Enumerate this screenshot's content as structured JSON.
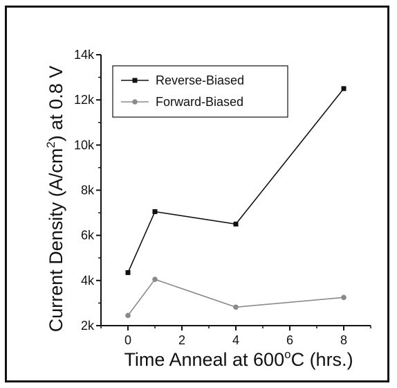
{
  "chart_data": {
    "type": "line",
    "title": "",
    "xlabel": "Time Anneal at 600°C (hrs.)",
    "xlabel_parts": {
      "before": "Time Anneal at 600",
      "degree": "o",
      "after": "C (hrs.)"
    },
    "ylabel": "Current Density (A/cm2) at 0.8 V",
    "ylabel_parts": {
      "before": "Current Density (A/cm",
      "sup": "2",
      "after": ") at 0.8 V"
    },
    "xlim": [
      -1,
      9
    ],
    "ylim": [
      2000,
      14000
    ],
    "xticks": [
      0,
      2,
      4,
      6,
      8
    ],
    "xtick_labels": [
      "0",
      "2",
      "4",
      "6",
      "8"
    ],
    "yticks": [
      2000,
      4000,
      6000,
      8000,
      10000,
      12000,
      14000
    ],
    "ytick_labels": [
      "2k",
      "4k",
      "6k",
      "8k",
      "10k",
      "12k",
      "14k"
    ],
    "grid": false,
    "legend_position": "top-left",
    "series": [
      {
        "name": "Reverse-Biased",
        "color": "#111111",
        "marker": "square",
        "x": [
          0,
          1,
          4,
          8
        ],
        "y": [
          4350,
          7050,
          6500,
          12500
        ]
      },
      {
        "name": "Forward-Biased",
        "color": "#8a8a8a",
        "marker": "circle",
        "x": [
          0,
          1,
          4,
          8
        ],
        "y": [
          2450,
          4050,
          2820,
          3250
        ]
      }
    ]
  }
}
